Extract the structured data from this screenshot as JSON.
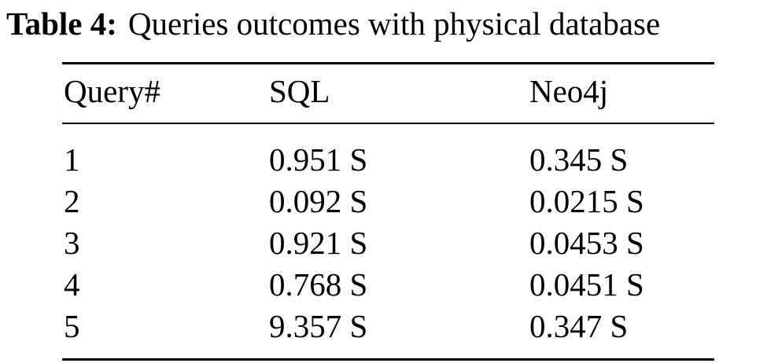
{
  "caption": {
    "label": "Table 4:",
    "text": "Queries outcomes with physical database"
  },
  "table": {
    "headers": [
      "Query#",
      "SQL",
      "Neo4j"
    ],
    "rows": [
      [
        "1",
        "0.951 S",
        "0.345 S"
      ],
      [
        "2",
        "0.092 S",
        "0.0215 S"
      ],
      [
        "3",
        "0.921 S",
        "0.0453 S"
      ],
      [
        "4",
        "0.768 S",
        "0.0451 S"
      ],
      [
        "5",
        "9.357 S",
        "0.347 S"
      ]
    ]
  }
}
